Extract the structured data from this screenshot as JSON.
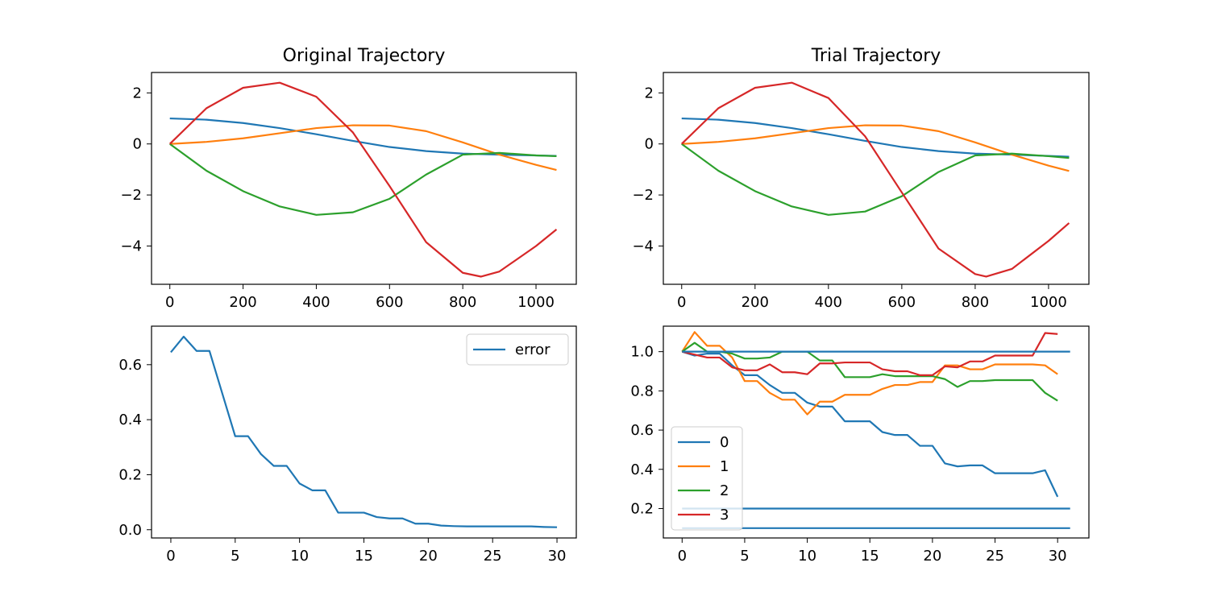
{
  "chart_data": [
    {
      "type": "line",
      "title": "Original Trajectory",
      "xlabel": "",
      "ylabel": "",
      "xlim": [
        -50,
        1110
      ],
      "ylim": [
        -5.5,
        2.8
      ],
      "xticks": [
        0,
        200,
        400,
        600,
        800,
        1000
      ],
      "yticks": [
        2,
        0,
        -2,
        -4
      ],
      "ytick_labels": [
        "2",
        "0",
        "−2",
        "−4"
      ],
      "legend": null,
      "series": [
        {
          "color": "#1f77b4",
          "x": [
            0,
            100,
            200,
            300,
            400,
            500,
            600,
            700,
            800,
            900,
            1000,
            1056
          ],
          "y": [
            1.0,
            0.95,
            0.82,
            0.62,
            0.38,
            0.12,
            -0.12,
            -0.28,
            -0.38,
            -0.42,
            -0.45,
            -0.47
          ]
        },
        {
          "color": "#ff7f0e",
          "x": [
            0,
            100,
            200,
            300,
            400,
            500,
            600,
            700,
            800,
            900,
            1000,
            1056
          ],
          "y": [
            0.0,
            0.08,
            0.22,
            0.42,
            0.62,
            0.73,
            0.72,
            0.5,
            0.06,
            -0.42,
            -0.82,
            -1.02
          ]
        },
        {
          "color": "#2ca02c",
          "x": [
            0,
            100,
            200,
            300,
            400,
            500,
            600,
            700,
            800,
            900,
            1000,
            1056
          ],
          "y": [
            0.0,
            -1.05,
            -1.85,
            -2.45,
            -2.78,
            -2.68,
            -2.15,
            -1.2,
            -0.42,
            -0.35,
            -0.45,
            -0.48
          ]
        },
        {
          "color": "#d62728",
          "x": [
            0,
            100,
            200,
            300,
            400,
            500,
            600,
            700,
            800,
            850,
            900,
            1000,
            1056
          ],
          "y": [
            0.0,
            1.4,
            2.2,
            2.4,
            1.85,
            0.45,
            -1.65,
            -3.85,
            -5.05,
            -5.2,
            -5.0,
            -4.0,
            -3.35
          ]
        }
      ]
    },
    {
      "type": "line",
      "title": "Trial Trajectory",
      "xlabel": "",
      "ylabel": "",
      "xlim": [
        -50,
        1110
      ],
      "ylim": [
        -5.5,
        2.8
      ],
      "xticks": [
        0,
        200,
        400,
        600,
        800,
        1000
      ],
      "yticks": [
        2,
        0,
        -2,
        -4
      ],
      "ytick_labels": [
        "2",
        "0",
        "−2",
        "−4"
      ],
      "legend": null,
      "series": [
        {
          "color": "#1f77b4",
          "x": [
            0,
            100,
            200,
            300,
            400,
            500,
            600,
            700,
            800,
            900,
            1000,
            1056
          ],
          "y": [
            1.0,
            0.95,
            0.82,
            0.62,
            0.38,
            0.12,
            -0.12,
            -0.28,
            -0.38,
            -0.42,
            -0.47,
            -0.5
          ]
        },
        {
          "color": "#ff7f0e",
          "x": [
            0,
            100,
            200,
            300,
            400,
            500,
            600,
            700,
            800,
            900,
            1000,
            1056
          ],
          "y": [
            0.0,
            0.08,
            0.22,
            0.42,
            0.62,
            0.73,
            0.72,
            0.5,
            0.06,
            -0.42,
            -0.85,
            -1.06
          ]
        },
        {
          "color": "#2ca02c",
          "x": [
            0,
            100,
            200,
            300,
            400,
            500,
            600,
            700,
            800,
            900,
            1000,
            1056
          ],
          "y": [
            0.0,
            -1.05,
            -1.85,
            -2.45,
            -2.78,
            -2.65,
            -2.05,
            -1.1,
            -0.45,
            -0.38,
            -0.48,
            -0.55
          ]
        },
        {
          "color": "#d62728",
          "x": [
            0,
            100,
            200,
            300,
            400,
            500,
            600,
            700,
            800,
            830,
            900,
            1000,
            1056
          ],
          "y": [
            0.0,
            1.4,
            2.2,
            2.4,
            1.8,
            0.3,
            -1.9,
            -4.1,
            -5.1,
            -5.2,
            -4.9,
            -3.8,
            -3.1
          ]
        }
      ]
    },
    {
      "type": "line",
      "title": "",
      "xlabel": "",
      "ylabel": "",
      "xlim": [
        -1.5,
        31.5
      ],
      "ylim": [
        -0.03,
        0.74
      ],
      "xticks": [
        0,
        5,
        10,
        15,
        20,
        25,
        30
      ],
      "yticks": [
        0.0,
        0.2,
        0.4,
        0.6
      ],
      "ytick_labels": [
        "0.0",
        "0.2",
        "0.4",
        "0.6"
      ],
      "legend": "top-right",
      "series": [
        {
          "name": "error",
          "color": "#1f77b4",
          "x": [
            0,
            1,
            2,
            3,
            4,
            5,
            6,
            7,
            8,
            9,
            10,
            11,
            12,
            13,
            14,
            15,
            16,
            17,
            18,
            19,
            20,
            21,
            22,
            23,
            24,
            25,
            26,
            27,
            28,
            29,
            30
          ],
          "y": [
            0.645,
            0.702,
            0.65,
            0.65,
            0.495,
            0.34,
            0.34,
            0.275,
            0.232,
            0.232,
            0.168,
            0.143,
            0.143,
            0.062,
            0.062,
            0.062,
            0.046,
            0.041,
            0.041,
            0.022,
            0.022,
            0.015,
            0.013,
            0.012,
            0.012,
            0.012,
            0.012,
            0.012,
            0.012,
            0.01,
            0.009
          ]
        }
      ]
    },
    {
      "type": "line",
      "title": "",
      "xlabel": "",
      "ylabel": "",
      "xlim": [
        -1.5,
        32.5
      ],
      "ylim": [
        0.05,
        1.13
      ],
      "xticks": [
        0,
        5,
        10,
        15,
        20,
        25,
        30
      ],
      "yticks": [
        1.0,
        0.8,
        0.6,
        0.4,
        0.2
      ],
      "ytick_labels": [
        "1.0",
        "0.8",
        "0.6",
        "0.4",
        "0.2"
      ],
      "legend": "bottom-left",
      "series": [
        {
          "name": "0",
          "color": "#1f77b4",
          "x": [
            0,
            1,
            2,
            3,
            4,
            5,
            6,
            7,
            8,
            9,
            10,
            11,
            12,
            13,
            14,
            15,
            16,
            17,
            18,
            19,
            20,
            21,
            22,
            23,
            24,
            25,
            26,
            27,
            28,
            29,
            30
          ],
          "y": [
            1.0,
            0.98,
            0.99,
            0.99,
            0.93,
            0.88,
            0.88,
            0.83,
            0.79,
            0.79,
            0.74,
            0.72,
            0.72,
            0.645,
            0.645,
            0.645,
            0.59,
            0.575,
            0.575,
            0.52,
            0.52,
            0.43,
            0.415,
            0.42,
            0.42,
            0.38,
            0.38,
            0.38,
            0.38,
            0.395,
            0.26
          ]
        },
        {
          "name": "1",
          "color": "#ff7f0e",
          "x": [
            0,
            1,
            2,
            3,
            4,
            5,
            6,
            7,
            8,
            9,
            10,
            11,
            12,
            13,
            14,
            15,
            16,
            17,
            18,
            19,
            20,
            21,
            22,
            23,
            24,
            25,
            26,
            27,
            28,
            29,
            30
          ],
          "y": [
            1.0,
            1.1,
            1.03,
            1.03,
            0.97,
            0.85,
            0.85,
            0.79,
            0.755,
            0.755,
            0.68,
            0.745,
            0.745,
            0.78,
            0.78,
            0.78,
            0.81,
            0.83,
            0.83,
            0.845,
            0.845,
            0.93,
            0.93,
            0.91,
            0.91,
            0.935,
            0.935,
            0.935,
            0.935,
            0.93,
            0.885
          ]
        },
        {
          "name": "2",
          "color": "#2ca02c",
          "x": [
            0,
            1,
            2,
            3,
            4,
            5,
            6,
            7,
            8,
            9,
            10,
            11,
            12,
            13,
            14,
            15,
            16,
            17,
            18,
            19,
            20,
            21,
            22,
            23,
            24,
            25,
            26,
            27,
            28,
            29,
            30
          ],
          "y": [
            1.0,
            1.045,
            1.0,
            1.0,
            0.99,
            0.965,
            0.965,
            0.97,
            1.0,
            1.0,
            1.0,
            0.955,
            0.955,
            0.87,
            0.87,
            0.87,
            0.885,
            0.875,
            0.875,
            0.875,
            0.875,
            0.86,
            0.82,
            0.85,
            0.85,
            0.855,
            0.855,
            0.855,
            0.855,
            0.79,
            0.75
          ]
        },
        {
          "name": "3",
          "color": "#d62728",
          "x": [
            0,
            1,
            2,
            3,
            4,
            5,
            6,
            7,
            8,
            9,
            10,
            11,
            12,
            13,
            14,
            15,
            16,
            17,
            18,
            19,
            20,
            21,
            22,
            23,
            24,
            25,
            26,
            27,
            28,
            29,
            30
          ],
          "y": [
            1.0,
            0.985,
            0.97,
            0.97,
            0.92,
            0.905,
            0.905,
            0.935,
            0.895,
            0.895,
            0.885,
            0.94,
            0.94,
            0.945,
            0.945,
            0.945,
            0.91,
            0.9,
            0.9,
            0.88,
            0.88,
            0.925,
            0.92,
            0.95,
            0.95,
            0.98,
            0.98,
            0.98,
            0.98,
            1.095,
            1.09
          ]
        },
        {
          "color": "#1f77b4",
          "x": [
            0,
            31
          ],
          "y": [
            1.0,
            1.0
          ]
        },
        {
          "color": "#1f77b4",
          "x": [
            0,
            31
          ],
          "y": [
            0.2,
            0.2
          ]
        },
        {
          "color": "#1f77b4",
          "x": [
            0,
            31
          ],
          "y": [
            0.1,
            0.1
          ]
        }
      ]
    }
  ]
}
